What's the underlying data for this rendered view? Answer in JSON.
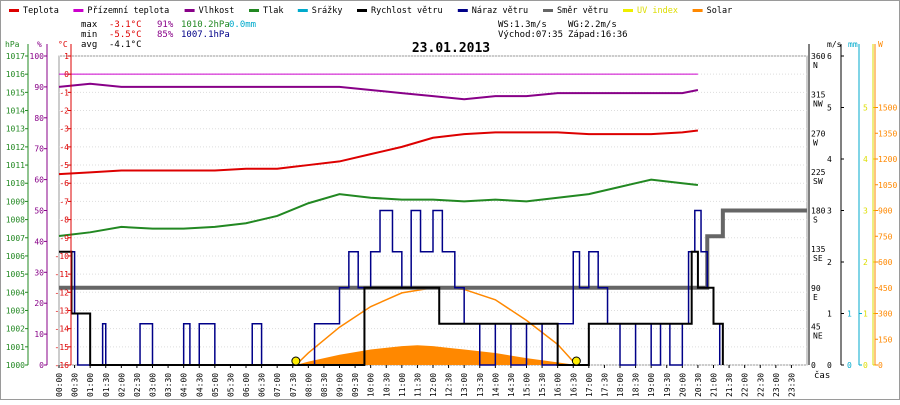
{
  "chart_data": {
    "type": "line",
    "title": "23.01.2013",
    "legend": [
      {
        "label": "Teplota",
        "color": "#dd0000"
      },
      {
        "label": "Přízemní teplota",
        "color": "#cc00cc"
      },
      {
        "label": "Vlhkost",
        "color": "#880088"
      },
      {
        "label": "Tlak",
        "color": "#228822"
      },
      {
        "label": "Srážky",
        "color": "#00aacc"
      },
      {
        "label": "Rychlost větru",
        "color": "#000000"
      },
      {
        "label": "Náraz větru",
        "color": "#000088"
      },
      {
        "label": "Směr větru",
        "color": "#666666"
      },
      {
        "label": "UV index",
        "color": "#eeee00"
      },
      {
        "label": "Solar",
        "color": "#ff8800"
      }
    ],
    "stats": {
      "row_labels": [
        "max",
        "min",
        "avg"
      ],
      "temperature": [
        "-3.1°C",
        "-5.5°C",
        "-4.1°C"
      ],
      "humidity": [
        "91%",
        "85%"
      ],
      "pressure": [
        "1010.2hPa",
        "1007.1hPa"
      ],
      "precipitation": "0.0mm",
      "ws": "WS:1.3m/s",
      "wg": "WG:2.2m/s",
      "sunrise": "Východ:07:35",
      "sunset": "Západ:16:36"
    },
    "axes": {
      "pressure": {
        "unit": "hPa",
        "min": 1000,
        "max": 1017,
        "ticks": [
          1017,
          1016,
          1015,
          1014,
          1013,
          1012,
          1011,
          1010,
          1009,
          1008,
          1007,
          1006,
          1005,
          1004,
          1003,
          1002,
          1001,
          1000
        ]
      },
      "humidity": {
        "unit": "%",
        "min": 0,
        "max": 100,
        "ticks": [
          100,
          90,
          80,
          70,
          60,
          50,
          40,
          30,
          20,
          10,
          0
        ]
      },
      "temperature": {
        "unit": "°C",
        "min": -16,
        "max": 1,
        "ticks": [
          1,
          0,
          -1,
          -2,
          -3,
          -4,
          -5,
          -6,
          -7,
          -8,
          -9,
          -10,
          -11,
          -12,
          -13,
          -14,
          -15,
          -16
        ]
      },
      "direction": {
        "unit": "",
        "min": 0,
        "max": 360,
        "ticks": [
          {
            "value": 360,
            "label": "360",
            "dir": "N"
          },
          {
            "value": 315,
            "label": "315",
            "dir": "NW"
          },
          {
            "value": 270,
            "label": "270",
            "dir": "W"
          },
          {
            "value": 225,
            "label": "225",
            "dir": "SW"
          },
          {
            "value": 180,
            "label": "180",
            "dir": "S"
          },
          {
            "value": 135,
            "label": "135",
            "dir": "SE"
          },
          {
            "value": 90,
            "label": "90",
            "dir": "E"
          },
          {
            "value": 45,
            "label": "45",
            "dir": "NE"
          },
          {
            "value": 0,
            "label": "0",
            "dir": ""
          }
        ]
      },
      "wind": {
        "unit": "m/s",
        "min": 0,
        "max": 6,
        "ticks": [
          6,
          5,
          4,
          3,
          2,
          1,
          0
        ]
      },
      "rain": {
        "unit": "mm",
        "min": 0,
        "max": 6,
        "ticks": [
          1,
          0
        ]
      },
      "solar": {
        "unit": "W",
        "min": 0,
        "max": 1800,
        "ticks": [
          1500,
          1350,
          1200,
          1050,
          900,
          750,
          600,
          450,
          300,
          150,
          0
        ]
      },
      "uv": {
        "unit": "",
        "min": 0,
        "max": 6,
        "ticks": [
          5,
          4,
          3,
          2,
          1,
          0
        ]
      }
    },
    "x_unit": "čas",
    "x_ticks": [
      "00:00",
      "00:30",
      "01:00",
      "01:30",
      "02:00",
      "02:30",
      "03:00",
      "03:30",
      "04:00",
      "04:30",
      "05:00",
      "05:30",
      "06:00",
      "06:30",
      "07:00",
      "07:30",
      "08:00",
      "08:30",
      "09:00",
      "09:30",
      "10:00",
      "10:30",
      "11:00",
      "11:30",
      "12:00",
      "12:30",
      "13:00",
      "13:30",
      "14:00",
      "14:30",
      "15:00",
      "15:30",
      "16:00",
      "16:30",
      "17:00",
      "17:30",
      "18:00",
      "18:30",
      "19:00",
      "19:30",
      "20:00",
      "20:30",
      "21:00",
      "21:30",
      "22:00",
      "22:30",
      "23:00",
      "23:30"
    ],
    "series": {
      "ground_temperature": {
        "x": [
          0,
          20.5
        ],
        "y": [
          0,
          0
        ]
      },
      "humidity": {
        "x": [
          0,
          1,
          2,
          3,
          4,
          5,
          6,
          7,
          8,
          9,
          10,
          11,
          12,
          13,
          14,
          15,
          16,
          17,
          18,
          19,
          20,
          20.5
        ],
        "y": [
          90,
          91,
          90,
          90,
          90,
          90,
          90,
          90,
          90,
          90,
          89,
          88,
          87,
          86,
          87,
          87,
          88,
          88,
          88,
          88,
          88,
          89
        ]
      },
      "temperature": {
        "x": [
          0,
          1,
          2,
          3,
          4,
          5,
          6,
          7,
          7.5,
          8,
          9,
          10,
          11,
          12,
          13,
          14,
          15,
          16,
          17,
          18,
          19,
          20,
          20.5
        ],
        "y": [
          -5.5,
          -5.4,
          -5.3,
          -5.3,
          -5.3,
          -5.3,
          -5.2,
          -5.2,
          -5.1,
          -5.0,
          -4.8,
          -4.4,
          -4.0,
          -3.5,
          -3.3,
          -3.2,
          -3.2,
          -3.2,
          -3.3,
          -3.3,
          -3.3,
          -3.2,
          -3.1
        ]
      },
      "pressure": {
        "x": [
          0,
          1,
          2,
          3,
          4,
          5,
          6,
          7,
          8,
          9,
          10,
          11,
          12,
          13,
          14,
          15,
          16,
          17,
          18,
          19,
          20,
          20.5
        ],
        "y": [
          1007.1,
          1007.3,
          1007.6,
          1007.5,
          1007.5,
          1007.6,
          1007.8,
          1008.2,
          1008.9,
          1009.4,
          1009.2,
          1009.1,
          1009.1,
          1009.0,
          1009.1,
          1009.0,
          1009.2,
          1009.4,
          1009.8,
          1010.2,
          1010.0,
          1009.9
        ]
      },
      "wind_speed": {
        "x": [
          0,
          0.3,
          0.4,
          1,
          1.5,
          3,
          4,
          5,
          6,
          7,
          8,
          9.5,
          9.8,
          11,
          12,
          12.2,
          13,
          14,
          15,
          16,
          16.5,
          17,
          18,
          19,
          20,
          20.3,
          20.5,
          21,
          21.3
        ],
        "y": [
          2.2,
          2.2,
          1,
          0,
          0,
          0,
          0,
          0,
          0,
          0,
          0,
          0,
          1.5,
          1.5,
          1.5,
          0.8,
          0.8,
          0.8,
          0.8,
          0,
          0,
          0.8,
          0.8,
          0.8,
          0.8,
          2.2,
          1.5,
          0.8,
          0
        ]
      },
      "wind_gust": {
        "x": [
          0,
          0.5,
          0.6,
          1,
          1.4,
          1.5,
          2,
          2.4,
          2.6,
          3,
          3.2,
          4,
          4.2,
          4.5,
          5,
          6,
          6.2,
          6.5,
          7,
          7.4,
          8,
          8.2,
          9,
          9.3,
          9.6,
          10,
          10.3,
          10.7,
          11,
          11.3,
          11.6,
          12,
          12.3,
          12.7,
          13,
          13.5,
          14,
          14.5,
          15,
          15.5,
          16,
          16.5,
          16.7,
          17,
          17.3,
          17.6,
          18,
          18.5,
          19,
          19.3,
          19.6,
          20,
          20.2,
          20.4,
          20.6,
          20.8,
          21,
          21.2
        ],
        "y": [
          2.2,
          1,
          0,
          0,
          0.8,
          0,
          0,
          0,
          0.8,
          0,
          0,
          0.8,
          0,
          0.8,
          0,
          0,
          0.8,
          0,
          0,
          0,
          0,
          0.8,
          1.5,
          2.2,
          1.5,
          2.2,
          3.0,
          2.2,
          1.5,
          3.0,
          2.2,
          3.0,
          2.2,
          1.5,
          0.8,
          0,
          0.8,
          0,
          0.8,
          0,
          0.8,
          2.2,
          1.5,
          2.2,
          1.5,
          0.8,
          0,
          0.8,
          0,
          0.8,
          0,
          0.8,
          2.2,
          3.0,
          2.2,
          1.5,
          0.8,
          0
        ]
      },
      "wind_direction": {
        "x": [
          0,
          20.5,
          20.8,
          21.3,
          24
        ],
        "y": [
          90,
          90,
          150,
          180,
          180
        ]
      },
      "solar_theoretical": {
        "x": [
          7.6,
          8,
          9,
          10,
          11,
          12,
          12.5,
          13,
          14,
          15,
          16,
          16.6
        ],
        "y": [
          0,
          70,
          220,
          340,
          420,
          450,
          450,
          440,
          380,
          260,
          120,
          0
        ]
      },
      "solar": {
        "x": [
          7.6,
          8,
          9,
          10,
          11,
          11.5,
          12,
          12.5,
          13,
          14,
          15,
          16,
          16.6
        ],
        "y": [
          0,
          20,
          60,
          90,
          110,
          115,
          110,
          100,
          90,
          70,
          40,
          15,
          0
        ]
      },
      "sun_markers": {
        "x": [
          7.6,
          16.6
        ],
        "y": [
          0,
          0
        ]
      }
    }
  }
}
